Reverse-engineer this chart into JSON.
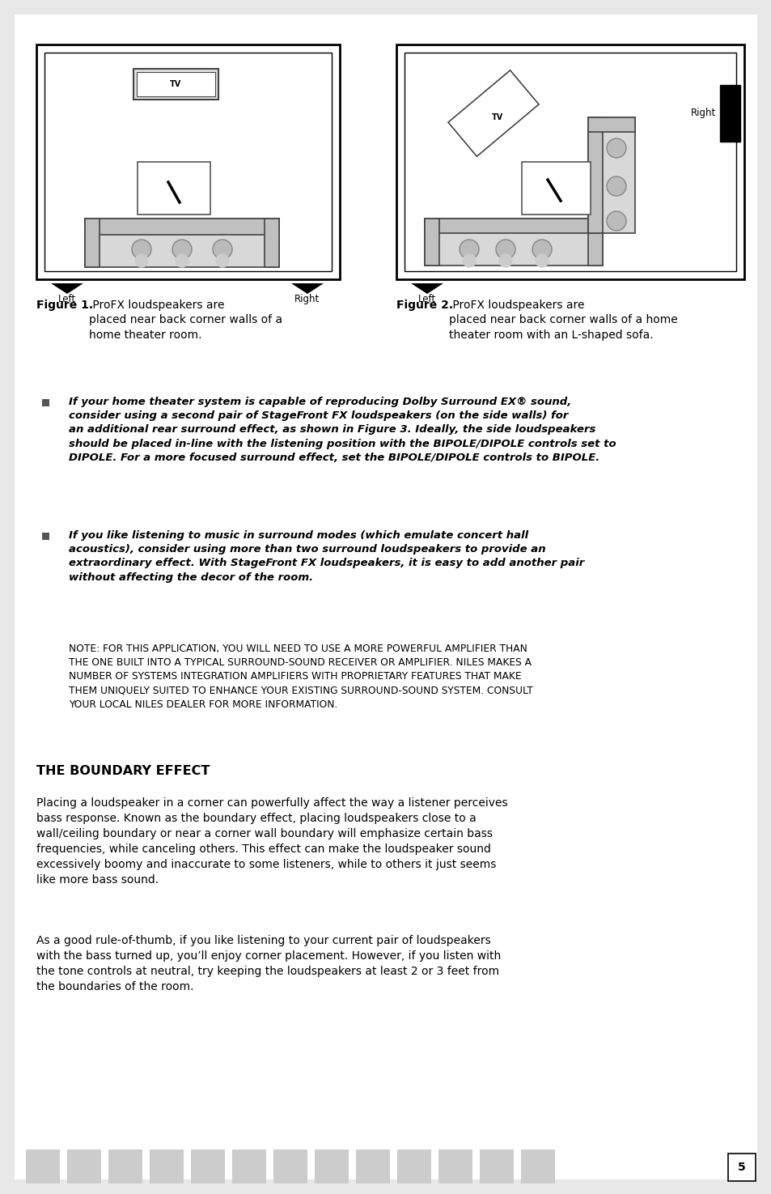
{
  "page_bg": "#e8e8e8",
  "content_bg": "#ffffff",
  "page_number": "5",
  "fig1_caption_bold": "Figure 1.",
  "fig1_caption_normal": " ProFX loudspeakers are\nplaced near back corner walls of a\nhome theater room.",
  "fig2_caption_bold": "Figure 2.",
  "fig2_caption_normal": " ProFX loudspeakers are\nplaced near back corner walls of a home\ntheater room with an L-shaped sofa.",
  "bullet1": "If your home theater system is capable of reproducing Dolby Surround EX® sound,\nconsider using a second pair of StageFront FX loudspeakers (on the side walls) for\nan additional rear surround effect, as shown in Figure 3. Ideally, the side loudspeakers\nshould be placed in-line with the listening position with the BIPOLE/DIPOLE controls set to\nDIPOLE. For a more focused surround effect, set the BIPOLE/DIPOLE controls to BIPOLE.",
  "bullet2": "If you like listening to music in surround modes (which emulate concert hall\nacoustics), consider using more than two surround loudspeakers to provide an\nextraordinary effect. With StageFront FX loudspeakers, it is easy to add another pair\nwithout affecting the decor of the room.",
  "note_text": "NOTE: FOR THIS APPLICATION, YOU WILL NEED TO USE A MORE POWERFUL AMPLIFIER THAN\nTHE ONE BUILT INTO A TYPICAL SURROUND-SOUND RECEIVER OR AMPLIFIER. NILES MAKES A\nNUMBER OF SYSTEMS INTEGRATION AMPLIFIERS WITH PROPRIETARY FEATURES THAT MAKE\nTHEM UNIQUELY SUITED TO ENHANCE YOUR EXISTING SURROUND-SOUND SYSTEM. CONSULT\nYOUR LOCAL NILES DEALER FOR MORE INFORMATION.",
  "boundary_heading": "THE BOUNDARY EFFECT",
  "boundary_para1": "Placing a loudspeaker in a corner can powerfully affect the way a listener perceives bass response. Known as the boundary effect, placing loudspeakers close to a wall/ceiling boundary or near a corner wall boundary will emphasize certain bass frequencies, while canceling others. This effect can make the loudspeaker sound excessively boomy and inaccurate to some listeners, while to others it just seems like more bass sound.",
  "boundary_para2": "As a good rule-of-thumb, if you like listening to your current pair of loudspeakers with the bass turned up, you’ll enjoy corner placement. However, if you listen with the tone controls at neutral, try keeping the loudspeakers at least 2 or 3 feet from the boundaries of the room."
}
